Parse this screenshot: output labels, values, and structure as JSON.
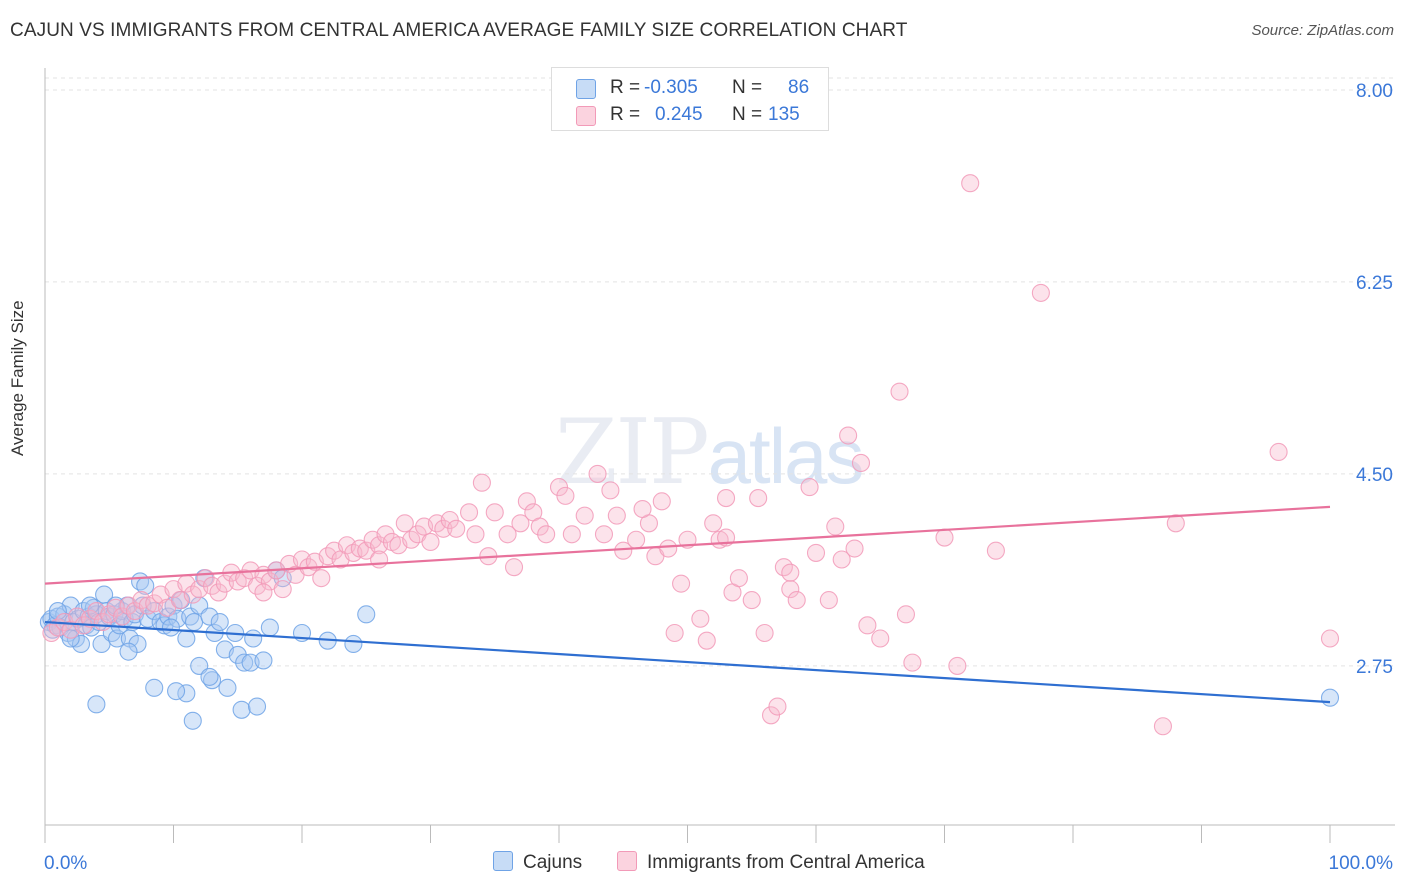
{
  "title": "CAJUN VS IMMIGRANTS FROM CENTRAL AMERICA AVERAGE FAMILY SIZE CORRELATION CHART",
  "source": "Source: ZipAtlas.com",
  "watermark": {
    "zip": "ZIP",
    "atlas": "atlas"
  },
  "legend": {
    "rows": [
      {
        "r_label": "R = ",
        "r_value": "-0.305",
        "n_label": "N = ",
        "n_value": "86",
        "color": "#a9c9f0"
      },
      {
        "r_label": "R = ",
        "r_value": "0.245",
        "n_label": "N = ",
        "n_value": "135",
        "color": "#f7b8cc"
      }
    ]
  },
  "bottom_legend": {
    "series1": "Cajuns",
    "series2": "Immigrants from Central America"
  },
  "chart_data": {
    "type": "scatter",
    "title": "CAJUN VS IMMIGRANTS FROM CENTRAL AMERICA AVERAGE FAMILY SIZE CORRELATION CHART",
    "ylabel": "Average Family Size",
    "xlabel": "",
    "x_tick_labels": [
      "0.0%",
      "100.0%"
    ],
    "y_ticks": [
      2.75,
      4.5,
      6.25,
      8.0
    ],
    "y_tick_labels": [
      "2.75",
      "4.50",
      "6.25",
      "8.00"
    ],
    "xlim": [
      0,
      100
    ],
    "ylim": [
      1.3,
      8.2
    ],
    "grid": true,
    "legend_position": "top-center",
    "series": [
      {
        "name": "Cajuns",
        "color": "#6fa3e6",
        "trend": {
          "x": [
            0,
            100
          ],
          "y": [
            3.15,
            2.42
          ]
        },
        "points": [
          [
            0.3,
            3.15
          ],
          [
            0.5,
            3.18
          ],
          [
            0.8,
            3.12
          ],
          [
            1.0,
            3.2
          ],
          [
            1.2,
            3.1
          ],
          [
            1.5,
            3.22
          ],
          [
            1.8,
            3.05
          ],
          [
            2.0,
            3.3
          ],
          [
            2.2,
            3.15
          ],
          [
            2.4,
            3.0
          ],
          [
            2.6,
            3.18
          ],
          [
            2.8,
            2.95
          ],
          [
            3.0,
            3.25
          ],
          [
            3.2,
            3.12
          ],
          [
            3.4,
            3.2
          ],
          [
            3.6,
            3.1
          ],
          [
            3.8,
            3.28
          ],
          [
            4.0,
            3.22
          ],
          [
            4.2,
            3.15
          ],
          [
            4.4,
            2.95
          ],
          [
            4.6,
            3.4
          ],
          [
            4.8,
            3.25
          ],
          [
            5.0,
            3.2
          ],
          [
            5.2,
            3.05
          ],
          [
            5.4,
            3.22
          ],
          [
            5.6,
            3.0
          ],
          [
            5.8,
            3.12
          ],
          [
            6.0,
            3.25
          ],
          [
            6.2,
            3.18
          ],
          [
            6.4,
            3.3
          ],
          [
            6.6,
            3.0
          ],
          [
            6.8,
            3.15
          ],
          [
            7.0,
            3.22
          ],
          [
            7.2,
            2.95
          ],
          [
            7.4,
            3.52
          ],
          [
            7.6,
            3.3
          ],
          [
            7.8,
            3.48
          ],
          [
            8.0,
            3.18
          ],
          [
            8.5,
            3.25
          ],
          [
            9.0,
            3.15
          ],
          [
            9.3,
            3.12
          ],
          [
            9.6,
            3.2
          ],
          [
            10.0,
            3.3
          ],
          [
            10.3,
            3.18
          ],
          [
            10.6,
            3.35
          ],
          [
            11.0,
            3.0
          ],
          [
            11.3,
            3.2
          ],
          [
            11.6,
            3.15
          ],
          [
            12.0,
            3.3
          ],
          [
            12.4,
            3.55
          ],
          [
            12.8,
            3.2
          ],
          [
            13.2,
            3.05
          ],
          [
            13.6,
            3.15
          ],
          [
            14.0,
            2.9
          ],
          [
            15.0,
            2.85
          ],
          [
            15.5,
            2.78
          ],
          [
            16.0,
            2.78
          ],
          [
            17.0,
            2.8
          ],
          [
            18.0,
            3.62
          ],
          [
            18.5,
            3.55
          ],
          [
            12.0,
            2.75
          ],
          [
            13.0,
            2.62
          ],
          [
            14.2,
            2.55
          ],
          [
            15.3,
            2.35
          ],
          [
            16.5,
            2.38
          ],
          [
            11.0,
            2.5
          ],
          [
            4.0,
            2.4
          ],
          [
            6.5,
            2.88
          ],
          [
            8.5,
            2.55
          ],
          [
            10.2,
            2.52
          ],
          [
            11.5,
            2.25
          ],
          [
            12.8,
            2.65
          ],
          [
            14.8,
            3.05
          ],
          [
            16.2,
            3.0
          ],
          [
            17.5,
            3.1
          ],
          [
            3.5,
            3.3
          ],
          [
            2.0,
            3.0
          ],
          [
            1.0,
            3.25
          ],
          [
            0.6,
            3.08
          ],
          [
            5.5,
            3.3
          ],
          [
            22.0,
            2.98
          ],
          [
            25.0,
            3.22
          ],
          [
            20.0,
            3.05
          ],
          [
            24.0,
            2.95
          ],
          [
            100.0,
            2.46
          ],
          [
            9.8,
            3.1
          ]
        ]
      },
      {
        "name": "Immigrants from Central America",
        "color": "#f29ab8",
        "trend": {
          "x": [
            0,
            100
          ],
          "y": [
            3.5,
            4.2
          ]
        },
        "points": [
          [
            0.5,
            3.05
          ],
          [
            1.0,
            3.1
          ],
          [
            1.5,
            3.15
          ],
          [
            2.0,
            3.08
          ],
          [
            2.5,
            3.2
          ],
          [
            3.0,
            3.12
          ],
          [
            3.5,
            3.18
          ],
          [
            4.0,
            3.25
          ],
          [
            4.5,
            3.15
          ],
          [
            5.0,
            3.22
          ],
          [
            5.5,
            3.28
          ],
          [
            6.0,
            3.2
          ],
          [
            6.5,
            3.3
          ],
          [
            7.0,
            3.25
          ],
          [
            7.5,
            3.35
          ],
          [
            8.0,
            3.3
          ],
          [
            8.5,
            3.32
          ],
          [
            9.0,
            3.4
          ],
          [
            9.5,
            3.28
          ],
          [
            10.0,
            3.45
          ],
          [
            10.5,
            3.35
          ],
          [
            11.0,
            3.5
          ],
          [
            11.5,
            3.4
          ],
          [
            12.0,
            3.45
          ],
          [
            12.5,
            3.55
          ],
          [
            13.0,
            3.48
          ],
          [
            13.5,
            3.42
          ],
          [
            14.0,
            3.5
          ],
          [
            14.5,
            3.6
          ],
          [
            15.0,
            3.52
          ],
          [
            15.5,
            3.55
          ],
          [
            16.0,
            3.62
          ],
          [
            16.5,
            3.48
          ],
          [
            17.0,
            3.58
          ],
          [
            17.5,
            3.52
          ],
          [
            18.0,
            3.62
          ],
          [
            18.5,
            3.45
          ],
          [
            19.0,
            3.68
          ],
          [
            19.5,
            3.58
          ],
          [
            20.0,
            3.72
          ],
          [
            20.5,
            3.65
          ],
          [
            21.0,
            3.7
          ],
          [
            21.5,
            3.55
          ],
          [
            22.0,
            3.75
          ],
          [
            22.5,
            3.8
          ],
          [
            23.0,
            3.72
          ],
          [
            23.5,
            3.85
          ],
          [
            24.0,
            3.78
          ],
          [
            24.5,
            3.82
          ],
          [
            25.0,
            3.8
          ],
          [
            25.5,
            3.9
          ],
          [
            26.0,
            3.85
          ],
          [
            26.5,
            3.95
          ],
          [
            27.0,
            3.88
          ],
          [
            27.5,
            3.85
          ],
          [
            28.0,
            4.05
          ],
          [
            28.5,
            3.9
          ],
          [
            29.0,
            3.95
          ],
          [
            29.5,
            4.02
          ],
          [
            30.0,
            3.88
          ],
          [
            30.5,
            4.05
          ],
          [
            31.0,
            4.0
          ],
          [
            31.5,
            4.08
          ],
          [
            32.0,
            4.0
          ],
          [
            33.0,
            4.15
          ],
          [
            33.5,
            3.95
          ],
          [
            34.0,
            4.42
          ],
          [
            34.5,
            3.75
          ],
          [
            35.0,
            4.15
          ],
          [
            36.0,
            3.95
          ],
          [
            37.0,
            4.05
          ],
          [
            37.5,
            4.25
          ],
          [
            38.0,
            4.15
          ],
          [
            38.5,
            4.02
          ],
          [
            39.0,
            3.95
          ],
          [
            40.0,
            4.38
          ],
          [
            40.5,
            4.3
          ],
          [
            41.0,
            3.95
          ],
          [
            42.0,
            4.12
          ],
          [
            43.0,
            4.5
          ],
          [
            43.5,
            3.95
          ],
          [
            44.0,
            4.35
          ],
          [
            44.5,
            4.12
          ],
          [
            45.0,
            3.8
          ],
          [
            46.0,
            3.9
          ],
          [
            47.0,
            4.05
          ],
          [
            47.5,
            3.75
          ],
          [
            48.0,
            4.25
          ],
          [
            48.5,
            3.82
          ],
          [
            49.0,
            3.05
          ],
          [
            49.5,
            3.5
          ],
          [
            50.0,
            3.9
          ],
          [
            51.0,
            3.18
          ],
          [
            51.5,
            2.98
          ],
          [
            52.0,
            4.05
          ],
          [
            52.5,
            3.9
          ],
          [
            53.0,
            4.28
          ],
          [
            53.5,
            3.42
          ],
          [
            54.0,
            3.55
          ],
          [
            55.0,
            3.35
          ],
          [
            55.5,
            4.28
          ],
          [
            56.0,
            3.05
          ],
          [
            56.5,
            2.3
          ],
          [
            57.0,
            2.38
          ],
          [
            57.5,
            3.65
          ],
          [
            58.0,
            3.45
          ],
          [
            58.5,
            3.35
          ],
          [
            59.5,
            4.38
          ],
          [
            60.0,
            3.78
          ],
          [
            61.0,
            3.35
          ],
          [
            61.5,
            4.02
          ],
          [
            62.5,
            4.85
          ],
          [
            63.0,
            3.82
          ],
          [
            63.5,
            4.6
          ],
          [
            64.0,
            3.12
          ],
          [
            65.0,
            3.0
          ],
          [
            66.5,
            5.25
          ],
          [
            67.0,
            3.22
          ],
          [
            67.5,
            2.78
          ],
          [
            70.0,
            3.92
          ],
          [
            71.0,
            2.75
          ],
          [
            72.0,
            7.15
          ],
          [
            74.0,
            3.8
          ],
          [
            77.5,
            6.15
          ],
          [
            87.0,
            2.2
          ],
          [
            88.0,
            4.05
          ],
          [
            96.0,
            4.7
          ],
          [
            100.0,
            3.0
          ],
          [
            17.0,
            3.42
          ],
          [
            26.0,
            3.72
          ],
          [
            36.5,
            3.65
          ],
          [
            46.5,
            4.18
          ],
          [
            58.0,
            3.6
          ],
          [
            62.0,
            3.72
          ],
          [
            53.0,
            3.92
          ]
        ]
      }
    ]
  }
}
